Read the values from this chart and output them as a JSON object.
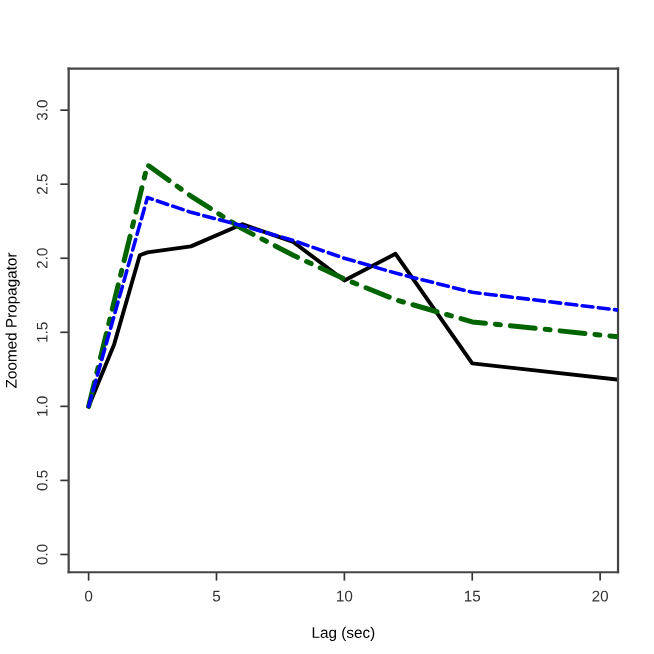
{
  "chart_data": {
    "type": "line",
    "xlabel": "Lag (sec)",
    "ylabel": "Zoomed Propagator",
    "xlim": [
      -0.78,
      20.7
    ],
    "ylim": [
      -0.12,
      3.28
    ],
    "xticks": [
      0,
      5,
      10,
      15,
      20
    ],
    "yticks": [
      {
        "value": 0,
        "label": "0.0"
      },
      {
        "value": 0.5,
        "label": "0.5"
      },
      {
        "value": 1,
        "label": "1.0"
      },
      {
        "value": 1.5,
        "label": "1.5"
      },
      {
        "value": 2,
        "label": "2.0"
      },
      {
        "value": 2.5,
        "label": "2.5"
      },
      {
        "value": 3,
        "label": "3.0"
      }
    ],
    "grid": false,
    "marker": "none",
    "series": [
      {
        "color": "#000000",
        "line_style": "solid",
        "x": [
          0,
          1,
          2,
          2.3,
          4,
          6,
          8,
          10,
          12,
          15,
          20.7
        ],
        "values": [
          1,
          1.42,
          2.02,
          2.04,
          2.08,
          2.23,
          2.11,
          1.85,
          2.03,
          1.29,
          1.18
        ]
      },
      {
        "color": "#0000ff",
        "line_style": "dashed",
        "x": [
          0,
          2.3,
          4,
          6,
          8,
          10,
          12,
          15,
          20.7
        ],
        "values": [
          1,
          2.41,
          2.31,
          2.22,
          2.12,
          2.0,
          1.9,
          1.77,
          1.65
        ]
      },
      {
        "color": "#006400",
        "line_style": "dashdot",
        "x": [
          0,
          2.3,
          4,
          6,
          8,
          10,
          12,
          15,
          20.7
        ],
        "values": [
          1,
          2.63,
          2.42,
          2.2,
          2.02,
          1.86,
          1.72,
          1.57,
          1.47
        ]
      }
    ]
  }
}
